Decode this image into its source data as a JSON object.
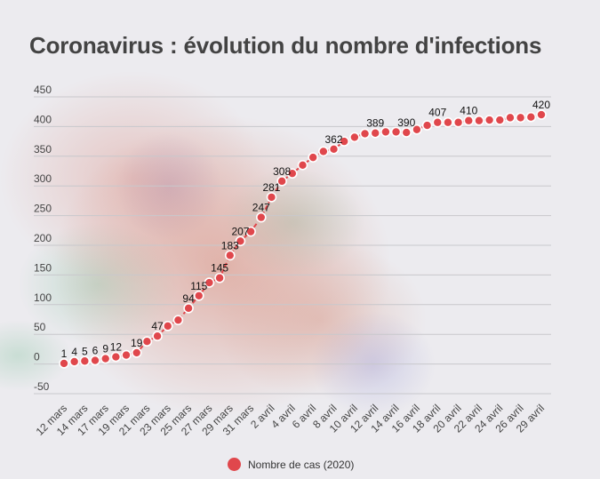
{
  "title": "Coronavirus : évolution du nombre d'infections",
  "legend": {
    "label": "Nombre de cas (2020)"
  },
  "colors": {
    "series": "#e0474c",
    "grid": "#c8c8cc",
    "text": "#434343"
  },
  "chart_data": {
    "type": "line",
    "title": "Coronavirus : évolution du nombre d'infections",
    "xlabel": "",
    "ylabel": "",
    "ylim": [
      -50,
      450
    ],
    "yticks": [
      450,
      400,
      350,
      300,
      250,
      200,
      150,
      100,
      50,
      0,
      -50
    ],
    "grid": true,
    "legend_position": "bottom",
    "xtick_labels": [
      "12 mars",
      "14 mars",
      "17 mars",
      "19 mars",
      "21 mars",
      "23 mars",
      "25 mars",
      "27 mars",
      "29 mars",
      "31 mars",
      "2 avril",
      "4 avril",
      "6 avril",
      "8 avril",
      "10 avril",
      "12 avril",
      "14 avril",
      "16 avril",
      "18 avril",
      "20 avril",
      "22 avril",
      "24 avril",
      "26 avril",
      "29 avril"
    ],
    "series": [
      {
        "name": "Nombre de cas (2020)",
        "values": [
          1,
          4,
          5,
          6,
          9,
          12,
          15,
          19,
          38,
          47,
          64,
          74,
          94,
          115,
          137,
          145,
          183,
          207,
          223,
          247,
          281,
          308,
          321,
          335,
          348,
          358,
          362,
          375,
          382,
          388,
          389,
          391,
          391,
          390,
          395,
          402,
          407,
          407,
          407,
          410,
          410,
          411,
          411,
          415,
          415,
          416,
          420
        ],
        "labeled_points": {
          "0": "1",
          "1": "4",
          "2": "5",
          "3": "6",
          "4": "9",
          "5": "12",
          "7": "19",
          "9": "47",
          "12": "94",
          "13": "115",
          "15": "145",
          "16": "183",
          "17": "207",
          "19": "247",
          "20": "281",
          "21": "308",
          "26": "362",
          "30": "389",
          "33": "390",
          "36": "407",
          "39": "410",
          "46": "420"
        }
      }
    ]
  }
}
